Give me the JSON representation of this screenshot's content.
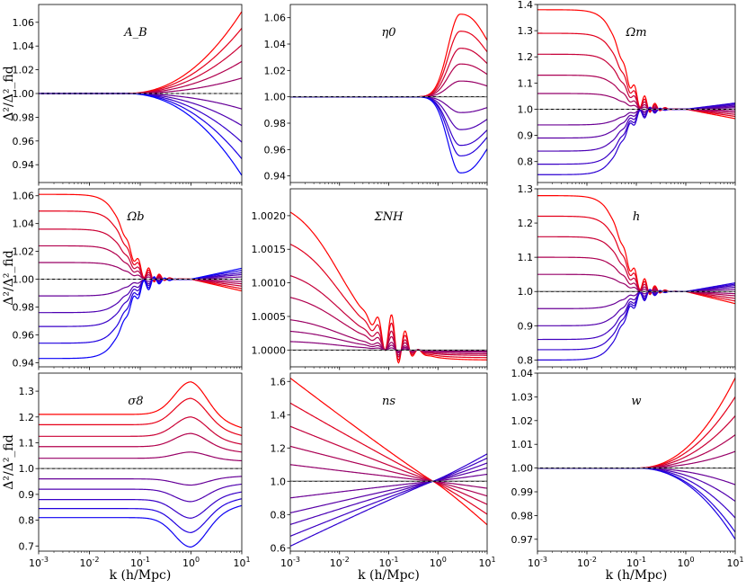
{
  "figure": {
    "ylabel": "Δ²/Δ²_fid",
    "xlabel": "k (h/Mpc)"
  },
  "colors": {
    "low": "#0000ff",
    "high": "#ff0000",
    "fiducial": "#000000"
  },
  "chart_data": [
    {
      "type": "line",
      "param": "A_B",
      "label": "A_B",
      "ylim": [
        0.925,
        1.075
      ],
      "yticks": [
        0.94,
        0.96,
        0.98,
        1.0,
        1.02,
        1.04,
        1.06
      ],
      "ytick_labels": [
        "0.94",
        "0.96",
        "0.98",
        "1.00",
        "1.02",
        "1.04",
        "1.06"
      ],
      "amps": [
        0.069,
        0.055,
        0.041,
        0.027,
        0.013,
        -0.013,
        -0.027,
        -0.041,
        -0.055,
        -0.069
      ],
      "shape": "highk",
      "onset": -1.3
    },
    {
      "type": "line",
      "param": "eta_0",
      "label": "η0",
      "ylim": [
        0.935,
        1.07
      ],
      "yticks": [
        0.94,
        0.96,
        0.98,
        1.0,
        1.02,
        1.04,
        1.06
      ],
      "ytick_labels": [
        "0.94",
        "0.96",
        "0.98",
        "1.00",
        "1.02",
        "1.04",
        "1.06"
      ],
      "amps": [
        0.063,
        0.05,
        0.037,
        0.025,
        0.012,
        -0.012,
        -0.025,
        -0.037,
        -0.045,
        -0.058
      ],
      "shape": "bump",
      "peak": 0.45,
      "width": 0.35
    },
    {
      "type": "line",
      "param": "Omega_m",
      "label": "Ωm",
      "ylim": [
        0.72,
        1.4
      ],
      "yticks": [
        0.8,
        0.9,
        1.0,
        1.1,
        1.2,
        1.3,
        1.4
      ],
      "ytick_labels": [
        "0.8",
        "0.9",
        "1.0",
        "1.1",
        "1.2",
        "1.3",
        "1.4"
      ],
      "amps": [
        0.38,
        0.29,
        0.21,
        0.13,
        0.06,
        -0.06,
        -0.11,
        -0.16,
        -0.21,
        -0.25
      ],
      "shape": "lowk",
      "cut": -1.3,
      "highamp": -0.03
    },
    {
      "type": "line",
      "param": "Omega_b",
      "label": "Ωb",
      "ylim": [
        0.937,
        1.065
      ],
      "yticks": [
        0.94,
        0.96,
        0.98,
        1.0,
        1.02,
        1.04,
        1.06
      ],
      "ytick_labels": [
        "0.94",
        "0.96",
        "0.98",
        "1.00",
        "1.02",
        "1.04",
        "1.06"
      ],
      "amps": [
        0.061,
        0.049,
        0.036,
        0.024,
        0.012,
        -0.012,
        -0.024,
        -0.034,
        -0.046,
        -0.057
      ],
      "shape": "lowk",
      "cut": -1.3,
      "highamp": -0.015
    },
    {
      "type": "line",
      "param": "Sigma_NH",
      "label": "ΣNH",
      "ylim": [
        0.99975,
        1.0024
      ],
      "yticks": [
        1.0,
        1.0005,
        1.001,
        1.0015,
        1.002
      ],
      "ytick_labels": [
        "1.0000",
        "1.0005",
        "1.0010",
        "1.0015",
        "1.0020"
      ],
      "amps": [
        0.00228,
        0.00175,
        0.00123,
        0.00087,
        0.0005,
        0.00031,
        0.00014
      ],
      "shape": "decay",
      "tail": -0.00015
    },
    {
      "type": "line",
      "param": "h",
      "label": "h",
      "ylim": [
        0.78,
        1.3
      ],
      "yticks": [
        0.8,
        0.9,
        1.0,
        1.1,
        1.2,
        1.3
      ],
      "ytick_labels": [
        "0.8",
        "0.9",
        "1.0",
        "1.1",
        "1.2",
        "1.3"
      ],
      "amps": [
        0.28,
        0.22,
        0.16,
        0.1,
        0.05,
        -0.05,
        -0.1,
        -0.14,
        -0.17,
        -0.2
      ],
      "shape": "lowk",
      "cut": -1.3,
      "highamp": -0.04
    },
    {
      "type": "line",
      "param": "sigma_8",
      "label": "σ8",
      "ylim": [
        0.68,
        1.37
      ],
      "yticks": [
        0.7,
        0.8,
        0.9,
        1.0,
        1.1,
        1.2,
        1.3
      ],
      "ytick_labels": [
        "0.7",
        "0.8",
        "0.9",
        "1.0",
        "1.1",
        "1.2",
        "1.3"
      ],
      "amps": [
        0.21,
        0.17,
        0.125,
        0.085,
        0.04,
        -0.04,
        -0.08,
        -0.12,
        -0.155,
        -0.19
      ],
      "shape": "sigma"
    },
    {
      "type": "line",
      "param": "n_s",
      "label": "ns",
      "ylim": [
        0.58,
        1.65
      ],
      "yticks": [
        0.6,
        0.8,
        1.0,
        1.2,
        1.4,
        1.6
      ],
      "ytick_labels": [
        "0.6",
        "0.8",
        "1.0",
        "1.2",
        "1.4",
        "1.6"
      ],
      "amps": [
        0.62,
        0.47,
        0.33,
        0.21,
        0.1,
        -0.1,
        -0.19,
        -0.26,
        -0.33,
        -0.39
      ],
      "shape": "tilt"
    },
    {
      "type": "line",
      "param": "w",
      "label": "w",
      "ylim": [
        0.965,
        1.04
      ],
      "yticks": [
        0.97,
        0.98,
        0.99,
        1.0,
        1.01,
        1.02,
        1.03,
        1.04
      ],
      "ytick_labels": [
        "0.97",
        "0.98",
        "0.99",
        "1.00",
        "1.01",
        "1.02",
        "1.03",
        "1.04"
      ],
      "amps": [
        0.038,
        0.03,
        0.022,
        0.014,
        0.007,
        -0.007,
        -0.014,
        -0.021,
        -0.027,
        -0.03
      ],
      "shape": "highk",
      "onset": -1.0
    }
  ],
  "xaxis": {
    "scale": "log",
    "xlim": [
      0.001,
      10
    ],
    "ticks": [
      0.001,
      0.01,
      0.1,
      1,
      10
    ],
    "tick_base": "10",
    "tick_exponents": [
      "-3",
      "-2",
      "-1",
      "0",
      "1"
    ]
  }
}
